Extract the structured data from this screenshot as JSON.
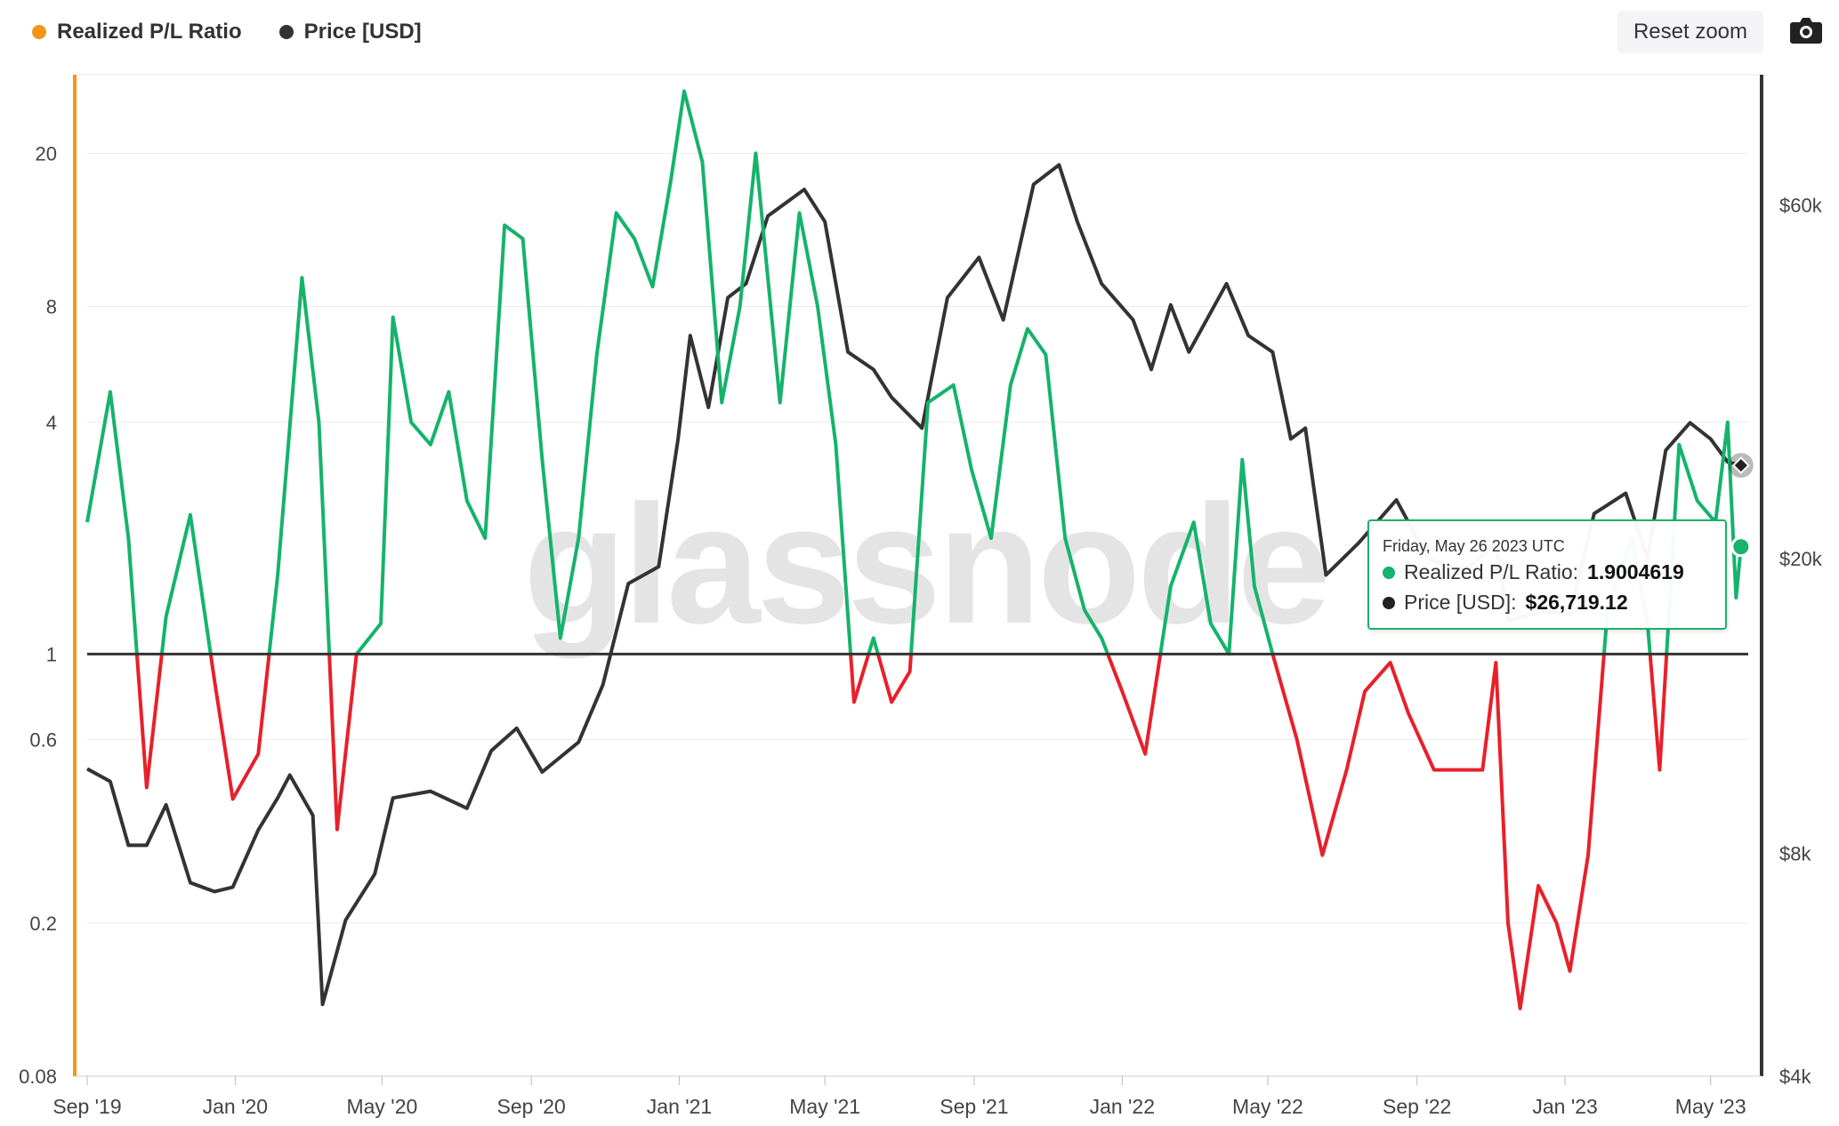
{
  "legend": [
    {
      "label": "Realized P/L Ratio",
      "color": "#f7931a"
    },
    {
      "label": "Price [USD]",
      "color": "#333333"
    }
  ],
  "toolbar": {
    "reset_label": "Reset zoom",
    "camera_icon": "camera-icon"
  },
  "watermark": "glassnode",
  "tooltip": {
    "date": "Friday, May 26 2023 UTC",
    "ratio_label": "Realized P/L Ratio:",
    "ratio_value": "1.9004619",
    "price_label": "Price [USD]:",
    "price_value": "$26,719.12"
  },
  "colors": {
    "profit": "#15b36b",
    "loss": "#e8202a",
    "price": "#333333",
    "ratio_axis": "#f7931a",
    "price_axis": "#333333",
    "baseline": "#333333"
  },
  "chart_data": {
    "type": "line",
    "x_range": [
      "2019-09-01",
      "2023-06-01"
    ],
    "left_axis": {
      "name": "Realized P/L Ratio",
      "scale": "log",
      "range": [
        0.08,
        32
      ],
      "ticks": [
        0.08,
        0.2,
        0.6,
        1,
        4,
        8,
        20
      ],
      "tick_labels": [
        "0.08",
        "0.2",
        "0.6",
        "1",
        "4",
        "8",
        "20"
      ]
    },
    "right_axis": {
      "name": "Price [USD]",
      "scale": "log",
      "range": [
        4000,
        90000
      ],
      "ticks": [
        4000,
        8000,
        20000,
        60000
      ],
      "tick_labels": [
        "$4k",
        "$8k",
        "$20k",
        "$60k"
      ]
    },
    "x_ticks": [
      "2019-09-01",
      "2020-01-01",
      "2020-05-01",
      "2020-09-01",
      "2021-01-01",
      "2021-05-01",
      "2021-09-01",
      "2022-01-01",
      "2022-05-01",
      "2022-09-01",
      "2023-01-01",
      "2023-05-01"
    ],
    "x_tick_labels": [
      "Sep '19",
      "Jan '20",
      "May '20",
      "Sep '20",
      "Jan '21",
      "May '21",
      "Sep '21",
      "Jan '22",
      "May '22",
      "Sep '22",
      "Jan '23",
      "May '23"
    ],
    "baseline": 1,
    "series": [
      {
        "name": "Realized P/L Ratio",
        "points": [
          [
            "2019-09-01",
            2.2
          ],
          [
            "2019-09-20",
            4.8
          ],
          [
            "2019-10-05",
            2.0
          ],
          [
            "2019-10-20",
            0.45
          ],
          [
            "2019-11-05",
            1.25
          ],
          [
            "2019-11-25",
            2.3
          ],
          [
            "2019-12-15",
            0.85
          ],
          [
            "2019-12-30",
            0.42
          ],
          [
            "2020-01-20",
            0.55
          ],
          [
            "2020-02-05",
            1.6
          ],
          [
            "2020-02-25",
            9.5
          ],
          [
            "2020-03-10",
            4.0
          ],
          [
            "2020-03-25",
            0.35
          ],
          [
            "2020-04-10",
            1.0
          ],
          [
            "2020-04-30",
            1.2
          ],
          [
            "2020-05-10",
            7.5
          ],
          [
            "2020-05-25",
            4.0
          ],
          [
            "2020-06-10",
            3.5
          ],
          [
            "2020-06-25",
            4.8
          ],
          [
            "2020-07-10",
            2.5
          ],
          [
            "2020-07-25",
            2.0
          ],
          [
            "2020-08-10",
            13.0
          ],
          [
            "2020-08-25",
            12.0
          ],
          [
            "2020-09-10",
            3.2
          ],
          [
            "2020-09-25",
            1.1
          ],
          [
            "2020-10-10",
            2.0
          ],
          [
            "2020-10-25",
            6.0
          ],
          [
            "2020-11-10",
            14.0
          ],
          [
            "2020-11-25",
            12.0
          ],
          [
            "2020-12-10",
            9.0
          ],
          [
            "2020-12-25",
            17.0
          ],
          [
            "2021-01-05",
            29.0
          ],
          [
            "2021-01-20",
            19.0
          ],
          [
            "2021-02-05",
            4.5
          ],
          [
            "2021-02-20",
            8.0
          ],
          [
            "2021-03-05",
            20.0
          ],
          [
            "2021-03-25",
            4.5
          ],
          [
            "2021-04-10",
            14.0
          ],
          [
            "2021-04-25",
            8.0
          ],
          [
            "2021-05-10",
            3.5
          ],
          [
            "2021-05-25",
            0.75
          ],
          [
            "2021-06-10",
            1.1
          ],
          [
            "2021-06-25",
            0.75
          ],
          [
            "2021-07-10",
            0.9
          ],
          [
            "2021-07-25",
            4.5
          ],
          [
            "2021-08-15",
            5.0
          ],
          [
            "2021-08-30",
            3.0
          ],
          [
            "2021-09-15",
            2.0
          ],
          [
            "2021-10-01",
            5.0
          ],
          [
            "2021-10-15",
            7.0
          ],
          [
            "2021-10-30",
            6.0
          ],
          [
            "2021-11-15",
            2.0
          ],
          [
            "2021-12-01",
            1.3
          ],
          [
            "2021-12-15",
            1.1
          ],
          [
            "2022-01-01",
            0.8
          ],
          [
            "2022-01-20",
            0.55
          ],
          [
            "2022-02-10",
            1.5
          ],
          [
            "2022-03-01",
            2.2
          ],
          [
            "2022-03-15",
            1.2
          ],
          [
            "2022-03-30",
            1.0
          ],
          [
            "2022-04-10",
            3.2
          ],
          [
            "2022-04-20",
            1.5
          ],
          [
            "2022-05-05",
            1.0
          ],
          [
            "2022-05-25",
            0.6
          ],
          [
            "2022-06-15",
            0.3
          ],
          [
            "2022-07-05",
            0.5
          ],
          [
            "2022-07-20",
            0.8
          ],
          [
            "2022-08-10",
            0.95
          ],
          [
            "2022-08-25",
            0.7
          ],
          [
            "2022-09-15",
            0.5
          ],
          [
            "2022-10-05",
            0.5
          ],
          [
            "2022-10-25",
            0.5
          ],
          [
            "2022-11-05",
            0.95
          ],
          [
            "2022-11-15",
            0.2
          ],
          [
            "2022-11-25",
            0.12
          ],
          [
            "2022-12-10",
            0.25
          ],
          [
            "2022-12-25",
            0.2
          ],
          [
            "2023-01-05",
            0.15
          ],
          [
            "2023-01-20",
            0.3
          ],
          [
            "2023-02-05",
            1.3
          ],
          [
            "2023-02-25",
            2.0
          ],
          [
            "2023-03-10",
            1.2
          ],
          [
            "2023-03-20",
            0.5
          ],
          [
            "2023-04-05",
            3.5
          ],
          [
            "2023-04-20",
            2.5
          ],
          [
            "2023-05-05",
            2.2
          ],
          [
            "2023-05-15",
            4.0
          ],
          [
            "2023-05-22",
            1.4
          ],
          [
            "2023-05-26",
            1.9
          ]
        ]
      },
      {
        "name": "Price [USD]",
        "points": [
          [
            "2019-09-01",
            10400
          ],
          [
            "2019-09-20",
            10000
          ],
          [
            "2019-10-05",
            8200
          ],
          [
            "2019-10-20",
            8200
          ],
          [
            "2019-11-05",
            9300
          ],
          [
            "2019-11-25",
            7300
          ],
          [
            "2019-12-15",
            7100
          ],
          [
            "2019-12-30",
            7200
          ],
          [
            "2020-01-20",
            8600
          ],
          [
            "2020-02-05",
            9500
          ],
          [
            "2020-02-15",
            10200
          ],
          [
            "2020-03-05",
            9000
          ],
          [
            "2020-03-13",
            5000
          ],
          [
            "2020-04-01",
            6500
          ],
          [
            "2020-04-25",
            7500
          ],
          [
            "2020-05-10",
            9500
          ],
          [
            "2020-06-10",
            9700
          ],
          [
            "2020-07-10",
            9200
          ],
          [
            "2020-07-30",
            11000
          ],
          [
            "2020-08-20",
            11800
          ],
          [
            "2020-09-10",
            10300
          ],
          [
            "2020-10-10",
            11300
          ],
          [
            "2020-10-30",
            13500
          ],
          [
            "2020-11-20",
            18500
          ],
          [
            "2020-12-15",
            19500
          ],
          [
            "2020-12-31",
            29000
          ],
          [
            "2021-01-10",
            40000
          ],
          [
            "2021-01-25",
            32000
          ],
          [
            "2021-02-10",
            45000
          ],
          [
            "2021-02-25",
            47000
          ],
          [
            "2021-03-15",
            58000
          ],
          [
            "2021-04-14",
            63000
          ],
          [
            "2021-05-01",
            57000
          ],
          [
            "2021-05-20",
            38000
          ],
          [
            "2021-06-10",
            36000
          ],
          [
            "2021-06-25",
            33000
          ],
          [
            "2021-07-20",
            30000
          ],
          [
            "2021-08-10",
            45000
          ],
          [
            "2021-09-05",
            51000
          ],
          [
            "2021-09-25",
            42000
          ],
          [
            "2021-10-20",
            64000
          ],
          [
            "2021-11-10",
            68000
          ],
          [
            "2021-11-25",
            57000
          ],
          [
            "2021-12-15",
            47000
          ],
          [
            "2022-01-10",
            42000
          ],
          [
            "2022-01-25",
            36000
          ],
          [
            "2022-02-10",
            44000
          ],
          [
            "2022-02-25",
            38000
          ],
          [
            "2022-03-28",
            47000
          ],
          [
            "2022-04-15",
            40000
          ],
          [
            "2022-05-05",
            38000
          ],
          [
            "2022-05-20",
            29000
          ],
          [
            "2022-06-01",
            30000
          ],
          [
            "2022-06-18",
            19000
          ],
          [
            "2022-07-15",
            21000
          ],
          [
            "2022-08-15",
            24000
          ],
          [
            "2022-09-10",
            20000
          ],
          [
            "2022-10-10",
            19200
          ],
          [
            "2022-11-05",
            21000
          ],
          [
            "2022-11-15",
            16500
          ],
          [
            "2022-12-15",
            17000
          ],
          [
            "2023-01-05",
            16800
          ],
          [
            "2023-01-25",
            23000
          ],
          [
            "2023-02-20",
            24500
          ],
          [
            "2023-03-10",
            20000
          ],
          [
            "2023-03-25",
            28000
          ],
          [
            "2023-04-14",
            30500
          ],
          [
            "2023-05-01",
            29000
          ],
          [
            "2023-05-15",
            27000
          ],
          [
            "2023-05-26",
            26719
          ]
        ]
      }
    ]
  }
}
